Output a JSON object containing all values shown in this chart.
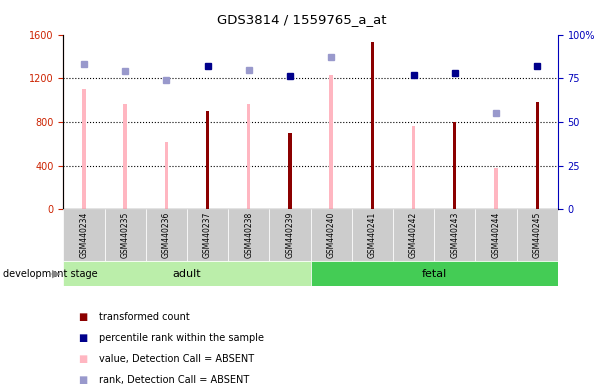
{
  "title": "GDS3814 / 1559765_a_at",
  "samples": [
    "GSM440234",
    "GSM440235",
    "GSM440236",
    "GSM440237",
    "GSM440238",
    "GSM440239",
    "GSM440240",
    "GSM440241",
    "GSM440242",
    "GSM440243",
    "GSM440244",
    "GSM440245"
  ],
  "dark_red_bars": [
    null,
    null,
    null,
    900,
    null,
    700,
    null,
    1530,
    null,
    800,
    null,
    980
  ],
  "pink_bars": [
    1100,
    960,
    620,
    null,
    960,
    null,
    1230,
    null,
    760,
    null,
    380,
    null
  ],
  "blue_squares_pct": [
    null,
    null,
    null,
    82,
    null,
    76,
    null,
    null,
    77,
    78,
    null,
    82
  ],
  "lavender_squares_pct": [
    83,
    79,
    74,
    null,
    80,
    null,
    87,
    null,
    null,
    null,
    55,
    null
  ],
  "groups": {
    "adult": [
      0,
      1,
      2,
      3,
      4,
      5
    ],
    "fetal": [
      6,
      7,
      8,
      9,
      10,
      11
    ]
  },
  "ylim_left": [
    0,
    1600
  ],
  "ylim_right": [
    0,
    100
  ],
  "yticks_left": [
    0,
    400,
    800,
    1200,
    1600
  ],
  "yticks_right": [
    0,
    25,
    50,
    75,
    100
  ],
  "bar_width": 0.08,
  "dark_red_color": "#8B0000",
  "pink_color": "#FFB6C1",
  "blue_color": "#00008B",
  "lavender_color": "#9999CC",
  "adult_bg_light": "#BBEEAA",
  "adult_bg": "#BBEEAA",
  "fetal_bg": "#44CC55",
  "left_axis_color": "#CC2200",
  "right_axis_color": "#0000BB",
  "grid_color": "#000000",
  "tick_bg": "#CCCCCC"
}
